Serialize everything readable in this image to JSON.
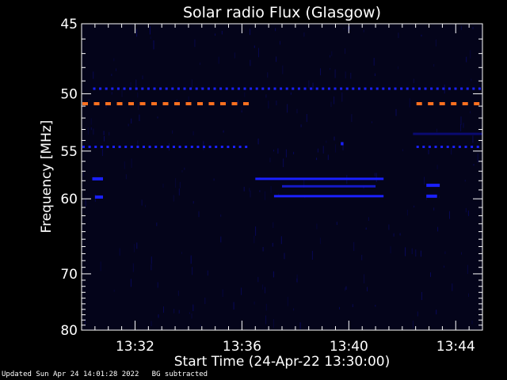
{
  "footer": {
    "updated": "Updated Sun Apr 24 14:01:28 2022",
    "note": "BG subtracted"
  },
  "colors": {
    "background": "#000000",
    "plot_bg": "#04041a",
    "axes": "#ffffff",
    "intense": "#ff7020",
    "intense_alt": "#ffa040",
    "signal": "#1a20ff",
    "faint": "#0a0a70"
  },
  "chart_data": {
    "type": "heatmap",
    "title": "Solar radio Flux (Glasgow)",
    "xlabel": "Start Time (24-Apr-22 13:30:00)",
    "ylabel": "Frequency [MHz]",
    "xlim_minutes": [
      0,
      15
    ],
    "ylim": [
      45,
      80
    ],
    "y_scale": "reciprocal",
    "invert_y": true,
    "x_ticks": [
      {
        "minute": 2,
        "label": "13:32"
      },
      {
        "minute": 6,
        "label": "13:36"
      },
      {
        "minute": 10,
        "label": "13:40"
      },
      {
        "minute": 14,
        "label": "13:44"
      }
    ],
    "y_ticks": [
      45,
      50,
      55,
      60,
      70,
      80
    ],
    "features": [
      {
        "kind": "dashed_band",
        "freq": 49.6,
        "t_start": 0.4,
        "t_end": 15,
        "intensity": "strong"
      },
      {
        "kind": "dashed_band",
        "freq": 50.8,
        "t_start": 0,
        "t_end": 6.3,
        "intensity": "intense"
      },
      {
        "kind": "dashed_band",
        "freq": 50.8,
        "t_start": 12.5,
        "t_end": 15,
        "intensity": "intense"
      },
      {
        "kind": "dashed_band",
        "freq": 54.6,
        "t_start": 0,
        "t_end": 6.3,
        "intensity": "moderate"
      },
      {
        "kind": "dashed_band",
        "freq": 54.6,
        "t_start": 12.5,
        "t_end": 15,
        "intensity": "strong"
      },
      {
        "kind": "solid_band",
        "freq": 57.8,
        "t_start": 6.5,
        "t_end": 11.3,
        "intensity": "strong"
      },
      {
        "kind": "solid_band",
        "freq": 59.7,
        "t_start": 7.2,
        "t_end": 11.3,
        "intensity": "strong"
      },
      {
        "kind": "solid_band",
        "freq": 58.6,
        "t_start": 7.5,
        "t_end": 11.0,
        "intensity": "moderate"
      },
      {
        "kind": "solid_band",
        "freq": 53.4,
        "t_start": 12.4,
        "t_end": 15,
        "intensity": "faint"
      },
      {
        "kind": "patch",
        "freq": 57.8,
        "t_start": 0.4,
        "t_end": 0.8,
        "intensity": "strong"
      },
      {
        "kind": "patch",
        "freq": 59.8,
        "t_start": 0.5,
        "t_end": 0.8,
        "intensity": "strong"
      },
      {
        "kind": "patch",
        "freq": 58.5,
        "t_start": 12.9,
        "t_end": 13.4,
        "intensity": "moderate"
      },
      {
        "kind": "patch",
        "freq": 59.7,
        "t_start": 12.9,
        "t_end": 13.3,
        "intensity": "moderate"
      },
      {
        "kind": "patch",
        "freq": 54.3,
        "t_start": 9.7,
        "t_end": 9.8,
        "intensity": "moderate"
      }
    ]
  }
}
